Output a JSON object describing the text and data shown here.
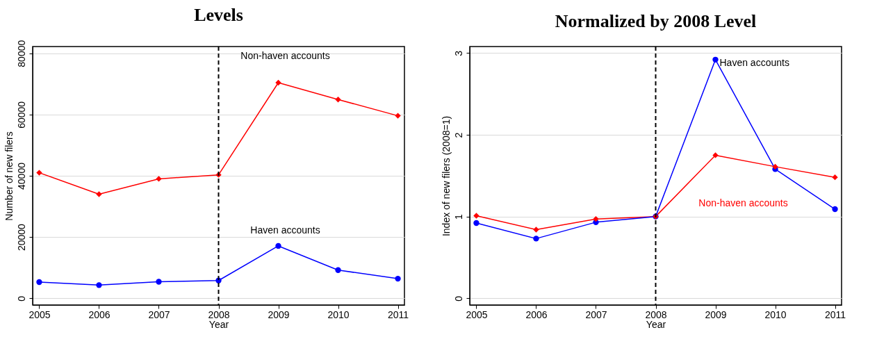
{
  "chart_data": [
    {
      "type": "line",
      "title": "Levels",
      "xlabel": "Year",
      "ylabel": "Number of new filers",
      "x": [
        2005,
        2006,
        2007,
        2008,
        2009,
        2010,
        2011
      ],
      "series": [
        {
          "name": "Non-haven accounts",
          "color": "#ff0000",
          "marker": "diamond",
          "values": [
            41000,
            34000,
            39000,
            40300,
            70400,
            64900,
            59600
          ]
        },
        {
          "name": "Haven accounts",
          "color": "#0000ff",
          "marker": "circle",
          "values": [
            5300,
            4300,
            5400,
            5800,
            17100,
            9200,
            6400
          ]
        }
      ],
      "xlim": [
        2004.89,
        2011.11
      ],
      "xticks": [
        2005,
        2006,
        2007,
        2008,
        2009,
        2010,
        2011
      ],
      "ylim": [
        -2200,
        82200
      ],
      "yticks": [
        0,
        20000,
        40000,
        60000,
        80000
      ],
      "ref_lines": [
        {
          "axis": "x",
          "value": 2008,
          "color": "#000000",
          "line_style": "dashed"
        }
      ],
      "grid": "y",
      "line_style": "solid"
    },
    {
      "type": "line",
      "title": "Normalized by 2008 Level",
      "xlabel": "Year",
      "ylabel": "Index of new filers (2008=1)",
      "x": [
        2005,
        2006,
        2007,
        2008,
        2009,
        2010,
        2011
      ],
      "series": [
        {
          "name": "Non-haven accounts",
          "color": "#ff0000",
          "marker": "diamond",
          "values": [
            1.01,
            0.84,
            0.97,
            1.0,
            1.75,
            1.61,
            1.48
          ]
        },
        {
          "name": "Haven accounts",
          "color": "#0000ff",
          "marker": "circle",
          "values": [
            0.92,
            0.73,
            0.93,
            1.0,
            2.92,
            1.58,
            1.09
          ]
        }
      ],
      "xlim": [
        2004.89,
        2011.11
      ],
      "xticks": [
        2005,
        2006,
        2007,
        2008,
        2009,
        2010,
        2011
      ],
      "ylim": [
        -0.083,
        3.08
      ],
      "yticks": [
        0,
        1,
        2,
        3
      ],
      "ref_lines": [
        {
          "axis": "x",
          "value": 2008,
          "color": "#000000",
          "line_style": "dashed"
        }
      ],
      "grid": "y",
      "line_style": "solid"
    }
  ]
}
